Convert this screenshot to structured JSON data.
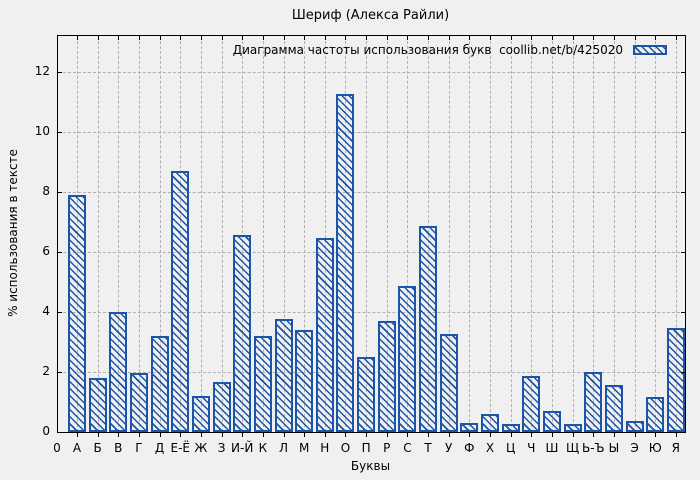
{
  "chart_data": {
    "type": "bar",
    "title": "Шериф (Алекса Райли)",
    "legend_label": "Диаграмма частоты использования букв  coollib.net/b/425020",
    "legend_position": "top-right-inside",
    "xlabel": "Буквы",
    "ylabel": "% использования в тексте",
    "x_origin_label": "0",
    "categories": [
      "А",
      "Б",
      "В",
      "Г",
      "Д",
      "Е-Ё",
      "Ж",
      "З",
      "И-Й",
      "К",
      "Л",
      "М",
      "Н",
      "О",
      "П",
      "Р",
      "С",
      "Т",
      "У",
      "Ф",
      "Х",
      "Ц",
      "Ч",
      "Ш",
      "Щ",
      "Ь-Ъ",
      "Ы",
      "Э",
      "Ю",
      "Я"
    ],
    "values": [
      7.9,
      1.8,
      4.0,
      1.95,
      3.2,
      8.7,
      1.2,
      1.65,
      6.55,
      3.2,
      3.75,
      3.4,
      6.45,
      11.25,
      2.5,
      3.7,
      4.85,
      6.85,
      3.25,
      0.3,
      0.6,
      0.25,
      1.85,
      0.7,
      0.25,
      2.0,
      1.55,
      0.35,
      1.15,
      3.45
    ],
    "y_ticks": [
      0,
      2,
      4,
      6,
      8,
      10,
      12
    ],
    "ylim": [
      0,
      13.2
    ],
    "grid": "dashed, horizontal and vertical",
    "bar_style": "diagonal-hatch",
    "colors": {
      "bar": "#1c54a8",
      "grid": "#b0b0b0",
      "background": "#f0f0f0",
      "axis": "#000000"
    }
  }
}
